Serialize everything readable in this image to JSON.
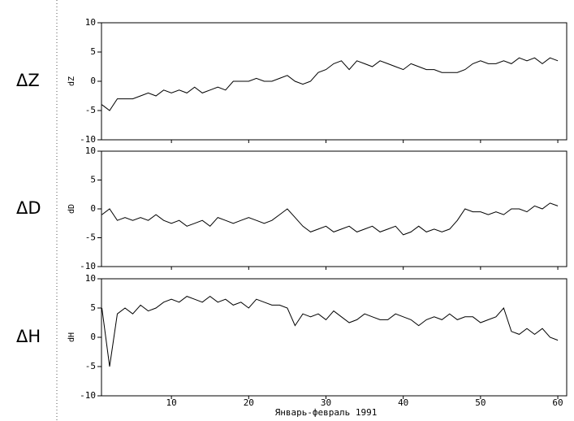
{
  "chart_data": [
    {
      "type": "line",
      "panel_label": "ΔZ",
      "ylabel": "dZ",
      "color": "#000000",
      "xlim": [
        0.95,
        61.15
      ],
      "xticks": [
        10,
        20,
        30,
        40,
        50,
        60
      ],
      "ylim": [
        -10,
        10
      ],
      "yticks": [
        10,
        5,
        0,
        -5,
        -10
      ],
      "x": [
        1,
        2,
        3,
        4,
        5,
        6,
        7,
        8,
        9,
        10,
        11,
        12,
        13,
        14,
        15,
        16,
        17,
        18,
        19,
        20,
        21,
        22,
        23,
        24,
        25,
        26,
        27,
        28,
        29,
        30,
        31,
        32,
        33,
        34,
        35,
        36,
        37,
        38,
        39,
        40,
        41,
        42,
        43,
        44,
        45,
        46,
        47,
        48,
        49,
        50,
        51,
        52,
        53,
        54,
        55,
        56,
        57,
        58,
        59,
        60
      ],
      "values": [
        -4,
        -5,
        -3,
        -3,
        -3,
        -2.5,
        -2,
        -2.5,
        -1.5,
        -2,
        -1.5,
        -2,
        -1,
        -2,
        -1.5,
        -1,
        -1.5,
        0,
        0,
        0,
        0.5,
        0,
        0,
        0.5,
        1,
        0,
        -0.5,
        0,
        1.5,
        2,
        3,
        3.5,
        2,
        3.5,
        3,
        2.5,
        3.5,
        3,
        2.5,
        2,
        3,
        2.5,
        2,
        2,
        1.5,
        1.5,
        1.5,
        2,
        3,
        3.5,
        3,
        3,
        3.5,
        3,
        4,
        3.5,
        4,
        3,
        4,
        3.5
      ]
    },
    {
      "type": "line",
      "panel_label": "ΔD",
      "ylabel": "dD",
      "color": "#000000",
      "xlim": [
        0.95,
        61.15
      ],
      "xticks": [
        10,
        20,
        30,
        40,
        50,
        60
      ],
      "ylim": [
        -10,
        10
      ],
      "yticks": [
        10,
        5,
        0,
        -5,
        -10
      ],
      "x": [
        1,
        2,
        3,
        4,
        5,
        6,
        7,
        8,
        9,
        10,
        11,
        12,
        13,
        14,
        15,
        16,
        17,
        18,
        19,
        20,
        21,
        22,
        23,
        24,
        25,
        26,
        27,
        28,
        29,
        30,
        31,
        32,
        33,
        34,
        35,
        36,
        37,
        38,
        39,
        40,
        41,
        42,
        43,
        44,
        45,
        46,
        47,
        48,
        49,
        50,
        51,
        52,
        53,
        54,
        55,
        56,
        57,
        58,
        59,
        60
      ],
      "values": [
        -1,
        0,
        -2,
        -1.5,
        -2,
        -1.5,
        -2,
        -1,
        -2,
        -2.5,
        -2,
        -3,
        -2.5,
        -2,
        -3,
        -1.5,
        -2,
        -2.5,
        -2,
        -1.5,
        -2,
        -2.5,
        -2,
        -1,
        0,
        -1.5,
        -3,
        -4,
        -3.5,
        -3,
        -4,
        -3.5,
        -3,
        -4,
        -3.5,
        -3,
        -4,
        -3.5,
        -3,
        -4.5,
        -4,
        -3,
        -4,
        -3.5,
        -4,
        -3.5,
        -2,
        0,
        -0.5,
        -0.5,
        -1,
        -0.5,
        -1,
        0,
        0,
        -0.5,
        0.5,
        0,
        1,
        0.5
      ]
    },
    {
      "type": "line",
      "panel_label": "ΔH",
      "ylabel": "dH",
      "color": "#000000",
      "xlim": [
        0.95,
        61.15
      ],
      "xticks": [
        10,
        20,
        30,
        40,
        50,
        60
      ],
      "ylim": [
        -10,
        10
      ],
      "yticks": [
        10,
        5,
        0,
        -5,
        -10
      ],
      "xlabel": "Январь-февраль 1991",
      "x": [
        1,
        2,
        3,
        4,
        5,
        6,
        7,
        8,
        9,
        10,
        11,
        12,
        13,
        14,
        15,
        16,
        17,
        18,
        19,
        20,
        21,
        22,
        23,
        24,
        25,
        26,
        27,
        28,
        29,
        30,
        31,
        32,
        33,
        34,
        35,
        36,
        37,
        38,
        39,
        40,
        41,
        42,
        43,
        44,
        45,
        46,
        47,
        48,
        49,
        50,
        51,
        52,
        53,
        54,
        55,
        56,
        57,
        58,
        59,
        60
      ],
      "values": [
        5,
        -5,
        4,
        5,
        4,
        5.5,
        4.5,
        5,
        6,
        6.5,
        6,
        7,
        6.5,
        6,
        7,
        6,
        6.5,
        5.5,
        6,
        5,
        6.5,
        6,
        5.5,
        5.5,
        5,
        2,
        4,
        3.5,
        4,
        3,
        4.5,
        3.5,
        2.5,
        3,
        4,
        3.5,
        3,
        3,
        4,
        3.5,
        3,
        2,
        3,
        3.5,
        3,
        4,
        3,
        3.5,
        3.5,
        2.5,
        3,
        3.5,
        5,
        1,
        0.5,
        1.5,
        0.5,
        1.5,
        0,
        -0.5
      ]
    }
  ]
}
